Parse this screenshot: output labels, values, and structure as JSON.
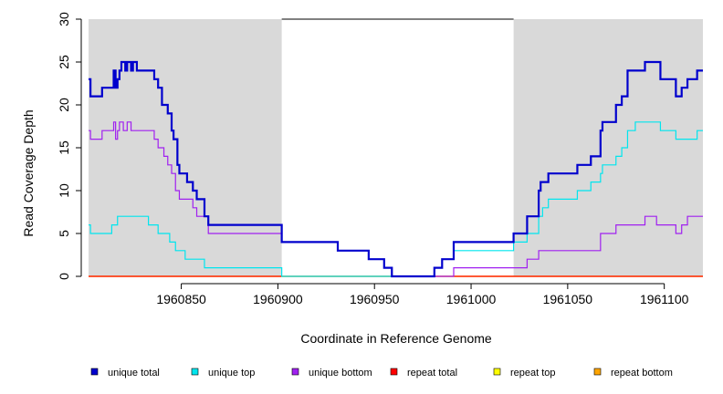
{
  "chart_data": {
    "type": "line",
    "ylabel": "Read Coverage Depth",
    "xlabel": "Coordinate in Reference Genome",
    "xlim": [
      1960802,
      1961120
    ],
    "ylim": [
      0,
      30
    ],
    "yticks": [
      0,
      5,
      10,
      15,
      20,
      25,
      30
    ],
    "xticks": [
      1960850,
      1960900,
      1960950,
      1961000,
      1961050,
      1961100
    ],
    "shaded_regions": [
      [
        1960802,
        1960902
      ],
      [
        1961022,
        1961120
      ]
    ],
    "series": [
      {
        "name": "unique total",
        "color": "#0000cd",
        "points": [
          [
            1960802,
            23
          ],
          [
            1960803,
            21
          ],
          [
            1960809,
            22
          ],
          [
            1960815,
            24
          ],
          [
            1960816,
            22
          ],
          [
            1960817,
            23
          ],
          [
            1960818,
            24
          ],
          [
            1960819,
            25
          ],
          [
            1960821,
            24
          ],
          [
            1960822,
            25
          ],
          [
            1960824,
            24
          ],
          [
            1960825,
            25
          ],
          [
            1960827,
            24
          ],
          [
            1960836,
            23
          ],
          [
            1960838,
            22
          ],
          [
            1960840,
            20
          ],
          [
            1960843,
            19
          ],
          [
            1960845,
            17
          ],
          [
            1960846,
            16
          ],
          [
            1960848,
            13
          ],
          [
            1960849,
            12
          ],
          [
            1960853,
            11
          ],
          [
            1960856,
            10
          ],
          [
            1960858,
            9
          ],
          [
            1960862,
            7
          ],
          [
            1960864,
            6
          ],
          [
            1960902,
            4
          ],
          [
            1960931,
            3
          ],
          [
            1960947,
            2
          ],
          [
            1960955,
            1
          ],
          [
            1960959,
            0
          ],
          [
            1960981,
            1
          ],
          [
            1960985,
            2
          ],
          [
            1960991,
            4
          ],
          [
            1961022,
            5
          ],
          [
            1961029,
            7
          ],
          [
            1961035,
            10
          ],
          [
            1961036,
            11
          ],
          [
            1961040,
            12
          ],
          [
            1961055,
            13
          ],
          [
            1961062,
            14
          ],
          [
            1961067,
            17
          ],
          [
            1961068,
            18
          ],
          [
            1961075,
            20
          ],
          [
            1961078,
            21
          ],
          [
            1961081,
            24
          ],
          [
            1961090,
            25
          ],
          [
            1961098,
            23
          ],
          [
            1961106,
            21
          ],
          [
            1961109,
            22
          ],
          [
            1961112,
            23
          ],
          [
            1961117,
            24
          ],
          [
            1961120,
            24
          ]
        ]
      },
      {
        "name": "unique top",
        "color": "#00e5ee",
        "points": [
          [
            1960802,
            6
          ],
          [
            1960803,
            5
          ],
          [
            1960814,
            6
          ],
          [
            1960817,
            7
          ],
          [
            1960833,
            6
          ],
          [
            1960838,
            5
          ],
          [
            1960844,
            4
          ],
          [
            1960847,
            3
          ],
          [
            1960852,
            2
          ],
          [
            1960862,
            1
          ],
          [
            1960902,
            0
          ],
          [
            1960981,
            1
          ],
          [
            1960985,
            2
          ],
          [
            1960991,
            3
          ],
          [
            1961022,
            4
          ],
          [
            1961029,
            5
          ],
          [
            1961035,
            7
          ],
          [
            1961037,
            8
          ],
          [
            1961040,
            9
          ],
          [
            1961055,
            10
          ],
          [
            1961062,
            11
          ],
          [
            1961067,
            12
          ],
          [
            1961068,
            13
          ],
          [
            1961075,
            14
          ],
          [
            1961078,
            15
          ],
          [
            1961081,
            17
          ],
          [
            1961085,
            18
          ],
          [
            1961098,
            17
          ],
          [
            1961106,
            16
          ],
          [
            1961117,
            17
          ],
          [
            1961120,
            17
          ]
        ]
      },
      {
        "name": "unique bottom",
        "color": "#a020f0",
        "points": [
          [
            1960802,
            17
          ],
          [
            1960803,
            16
          ],
          [
            1960809,
            17
          ],
          [
            1960815,
            18
          ],
          [
            1960816,
            16
          ],
          [
            1960817,
            17
          ],
          [
            1960818,
            18
          ],
          [
            1960820,
            17
          ],
          [
            1960822,
            18
          ],
          [
            1960824,
            17
          ],
          [
            1960836,
            16
          ],
          [
            1960838,
            15
          ],
          [
            1960841,
            14
          ],
          [
            1960843,
            13
          ],
          [
            1960845,
            12
          ],
          [
            1960847,
            10
          ],
          [
            1960849,
            9
          ],
          [
            1960856,
            8
          ],
          [
            1960858,
            7
          ],
          [
            1960864,
            5
          ],
          [
            1960902,
            4
          ],
          [
            1960931,
            3
          ],
          [
            1960947,
            2
          ],
          [
            1960955,
            1
          ],
          [
            1960959,
            0
          ],
          [
            1960991,
            1
          ],
          [
            1961029,
            2
          ],
          [
            1961035,
            3
          ],
          [
            1961067,
            5
          ],
          [
            1961075,
            6
          ],
          [
            1961090,
            7
          ],
          [
            1961096,
            6
          ],
          [
            1961106,
            5
          ],
          [
            1961109,
            6
          ],
          [
            1961112,
            7
          ],
          [
            1961120,
            7
          ]
        ]
      },
      {
        "name": "repeat total",
        "color": "#ff0000",
        "points": [
          [
            1960802,
            0
          ],
          [
            1961120,
            0
          ]
        ]
      },
      {
        "name": "repeat top",
        "color": "#ffff00",
        "points": [
          [
            1960802,
            0
          ],
          [
            1961120,
            0
          ]
        ]
      },
      {
        "name": "repeat bottom",
        "color": "#ffa500",
        "points": [
          [
            1960802,
            0
          ],
          [
            1961120,
            0
          ]
        ]
      }
    ],
    "legend_position": "bottom"
  }
}
